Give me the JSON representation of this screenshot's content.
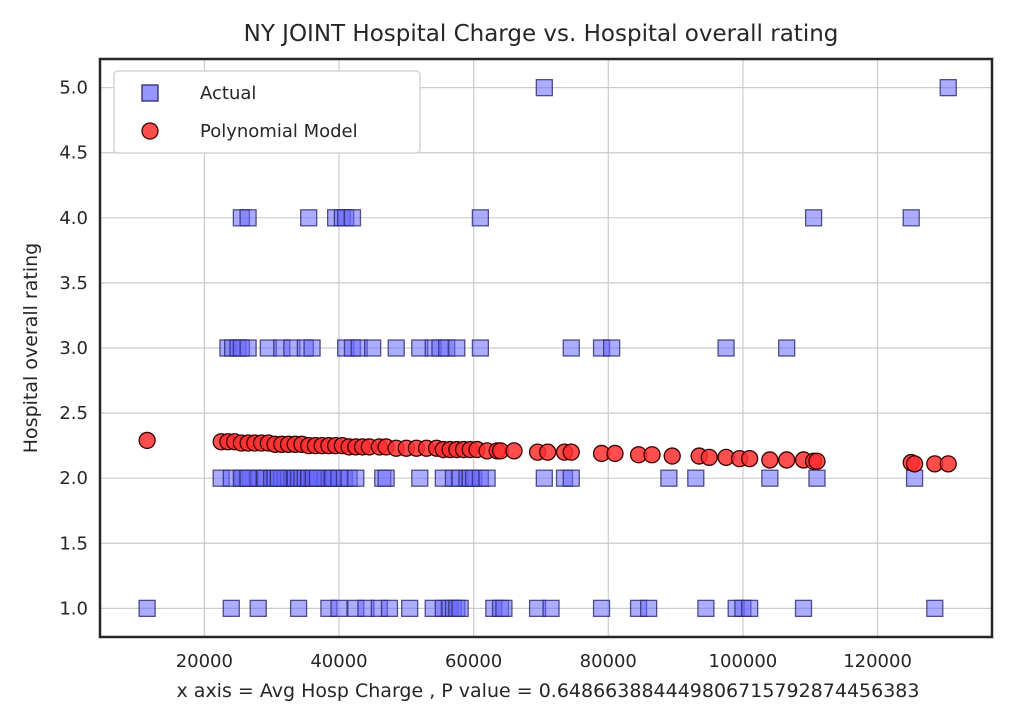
{
  "chart_data": {
    "type": "scatter",
    "title": "NY JOINT Hospital Charge vs. Hospital overall rating",
    "xlabel": "x axis = Avg Hosp Charge , P value = 0.6486638844498067157928744563​83",
    "ylabel": "Hospital overall rating",
    "xlim": [
      4500,
      137000
    ],
    "ylim": [
      0.78,
      5.22
    ],
    "xticks": [
      20000,
      40000,
      60000,
      80000,
      100000,
      120000
    ],
    "yticks": [
      1.0,
      1.5,
      2.0,
      2.5,
      3.0,
      3.5,
      4.0,
      4.5,
      5.0
    ],
    "grid": true,
    "legend": {
      "placement": "upper-left",
      "entries": [
        "Actual",
        "Polynomial Model"
      ]
    },
    "colors": {
      "actual_fill": "#6a6aff",
      "actual_edge": "#2b2b6b",
      "model_fill": "#ff2f2f",
      "model_edge": "#3a0000"
    },
    "series": [
      {
        "name": "Actual",
        "marker": "square",
        "x": [
          11500,
          22500,
          23500,
          24200,
          25000,
          25500,
          26500,
          25700,
          26800,
          28200,
          28000,
          29000,
          30000,
          30500,
          31000,
          31500,
          32000,
          32500,
          33000,
          33500,
          34000,
          34500,
          35000,
          35500,
          36000,
          36500,
          37000,
          37500,
          38000,
          38500,
          39000,
          29500,
          31500,
          33000,
          35000,
          36000,
          41000,
          42000,
          43000,
          45000,
          48500,
          52000,
          54000,
          55000,
          56000,
          57500,
          61000,
          74500,
          79000,
          80500,
          97500,
          106500,
          24000,
          25500,
          26500,
          31000,
          35500,
          36200,
          36800,
          39000,
          40000,
          40800,
          41500,
          42500,
          46500,
          47000,
          52000,
          55500,
          57000,
          58000,
          59000,
          59500,
          60000,
          61000,
          62000,
          70500,
          73500,
          74500,
          89000,
          93000,
          104000,
          111000,
          125500,
          24000,
          28000,
          34000,
          38500,
          40000,
          42500,
          44000,
          46000,
          47500,
          50500,
          54000,
          55500,
          56500,
          57000,
          57500,
          58000,
          63000,
          64000,
          64500,
          69500,
          71500,
          79000,
          84500,
          86000,
          94500,
          99000,
          100000,
          101000,
          109000,
          128500,
          25500,
          26500,
          35500,
          39500,
          40500,
          41000,
          42000,
          61000,
          110500,
          125000,
          70500,
          130500
        ],
        "y": [
          1,
          2,
          3,
          3,
          3,
          3,
          3,
          2,
          2,
          2,
          2,
          2,
          2,
          2,
          2,
          2,
          2,
          2,
          2,
          2,
          2,
          2,
          2,
          2,
          2,
          2,
          2,
          2,
          2,
          2,
          2,
          3,
          3,
          3,
          3,
          3,
          3,
          3,
          3,
          3,
          3,
          3,
          3,
          3,
          3,
          3,
          3,
          3,
          3,
          3,
          3,
          3,
          2,
          2,
          2,
          2,
          2,
          2,
          2,
          2,
          2,
          2,
          2,
          2,
          2,
          2,
          2,
          2,
          2,
          2,
          2,
          2,
          2,
          2,
          2,
          2,
          2,
          2,
          2,
          2,
          2,
          2,
          2,
          1,
          1,
          1,
          1,
          1,
          1,
          1,
          1,
          1,
          1,
          1,
          1,
          1,
          1,
          1,
          1,
          1,
          1,
          1,
          1,
          1,
          1,
          1,
          1,
          1,
          1,
          1,
          1,
          1,
          1,
          4,
          4,
          4,
          4,
          4,
          4,
          4,
          4,
          4,
          4,
          5,
          5
        ]
      },
      {
        "name": "Polynomial Model",
        "marker": "circle",
        "x": [
          11500,
          22500,
          23500,
          24500,
          25500,
          26500,
          27500,
          28500,
          29500,
          30500,
          31500,
          32500,
          33500,
          34500,
          35500,
          36500,
          37500,
          38500,
          39500,
          40500,
          41500,
          42500,
          43500,
          44500,
          46000,
          47000,
          48500,
          50000,
          51500,
          53000,
          54500,
          55500,
          56500,
          57500,
          58500,
          59500,
          60500,
          62000,
          63500,
          64000,
          66000,
          69500,
          71000,
          73500,
          74500,
          79000,
          81000,
          84500,
          86500,
          89500,
          93500,
          95000,
          97500,
          99500,
          101000,
          104000,
          106500,
          109000,
          110500,
          111000,
          125000,
          125500,
          128500,
          130500
        ],
        "y": [
          2.29,
          2.28,
          2.28,
          2.28,
          2.27,
          2.27,
          2.27,
          2.27,
          2.27,
          2.26,
          2.26,
          2.26,
          2.26,
          2.26,
          2.25,
          2.25,
          2.25,
          2.25,
          2.25,
          2.25,
          2.24,
          2.24,
          2.24,
          2.24,
          2.24,
          2.24,
          2.23,
          2.23,
          2.23,
          2.23,
          2.23,
          2.22,
          2.22,
          2.22,
          2.22,
          2.22,
          2.22,
          2.21,
          2.21,
          2.21,
          2.21,
          2.2,
          2.2,
          2.2,
          2.2,
          2.19,
          2.19,
          2.18,
          2.18,
          2.17,
          2.17,
          2.16,
          2.16,
          2.15,
          2.15,
          2.14,
          2.14,
          2.14,
          2.13,
          2.13,
          2.12,
          2.11,
          2.11,
          2.11
        ]
      }
    ]
  }
}
